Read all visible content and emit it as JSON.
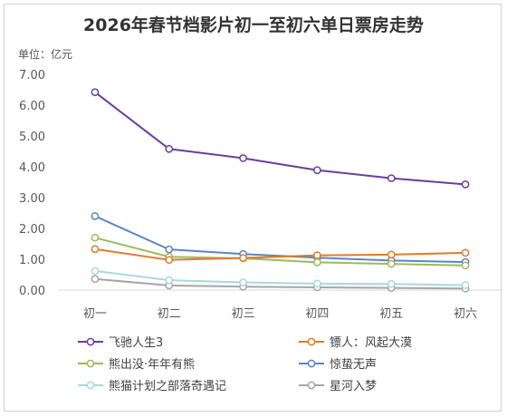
{
  "chart_data": {
    "type": "line",
    "title": "2026年春节档影片初一至初六单日票房走势",
    "unit_label": "单位：亿元",
    "categories": [
      "初一",
      "初二",
      "初三",
      "初四",
      "初五",
      "初六"
    ],
    "y_ticks": [
      "0.00",
      "1.00",
      "2.00",
      "3.00",
      "4.00",
      "5.00",
      "6.00",
      "7.00"
    ],
    "ylim": [
      0,
      7
    ],
    "grid": false,
    "legend_position": "bottom",
    "series": [
      {
        "name": "飞驰人生3",
        "color": "#6a3d9a",
        "values": [
          6.42,
          4.58,
          4.28,
          3.89,
          3.63,
          3.43
        ]
      },
      {
        "name": "镖人：风起大漠",
        "color": "#e07b2a",
        "values": [
          1.33,
          0.98,
          1.04,
          1.13,
          1.15,
          1.21
        ]
      },
      {
        "name": "熊出没·年年有熊",
        "color": "#9bbb59",
        "values": [
          1.7,
          1.08,
          1.03,
          0.9,
          0.85,
          0.8
        ]
      },
      {
        "name": "惊蛰无声",
        "color": "#5b85c4",
        "values": [
          2.4,
          1.32,
          1.17,
          1.05,
          0.96,
          0.91
        ]
      },
      {
        "name": "熊猫计划之部落奇遇记",
        "color": "#a8d8e0",
        "values": [
          0.62,
          0.32,
          0.25,
          0.21,
          0.2,
          0.16
        ]
      },
      {
        "name": "星河入梦",
        "color": "#a6a6a6",
        "values": [
          0.36,
          0.15,
          0.11,
          0.09,
          0.07,
          0.05
        ]
      }
    ]
  }
}
